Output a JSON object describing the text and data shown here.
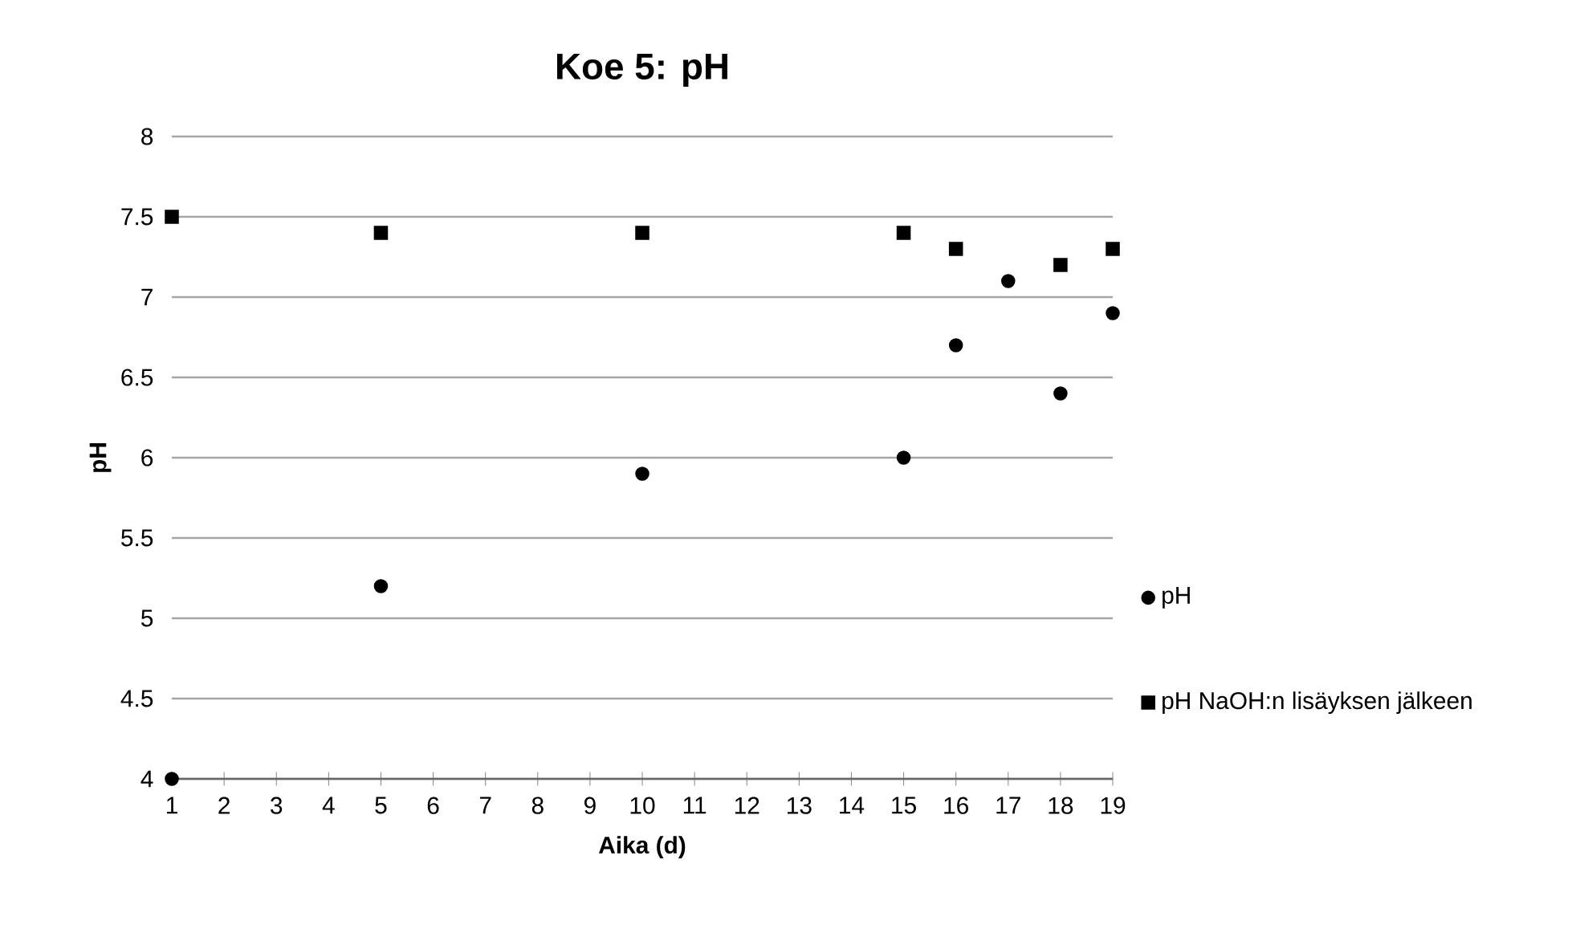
{
  "chart_data": {
    "type": "scatter",
    "title": "Koe 5: pH",
    "xlabel": "Aika (d)",
    "ylabel": "pH",
    "xlim": [
      1,
      19
    ],
    "xticks": [
      1,
      2,
      3,
      4,
      5,
      6,
      7,
      8,
      9,
      10,
      11,
      12,
      13,
      14,
      15,
      16,
      17,
      18,
      19
    ],
    "ylim": [
      4,
      8
    ],
    "yticks": [
      4,
      4.5,
      5,
      5.5,
      6,
      6.5,
      7,
      7.5,
      8
    ],
    "grid": "y",
    "legend": "right",
    "series": [
      {
        "name": "pH",
        "color": "#000000",
        "marker": "circle",
        "x": [
          1,
          5,
          10,
          15,
          16,
          17,
          18,
          19
        ],
        "values": [
          4.0,
          5.2,
          5.9,
          6.0,
          6.7,
          7.1,
          6.4,
          6.9
        ]
      },
      {
        "name": "pH NaOH:n lisäyksen jälkeen",
        "color": "#000000",
        "marker": "square",
        "x": [
          1,
          5,
          10,
          15,
          16,
          18,
          19
        ],
        "values": [
          7.5,
          7.4,
          7.4,
          7.4,
          7.3,
          7.2,
          7.3
        ]
      }
    ]
  }
}
